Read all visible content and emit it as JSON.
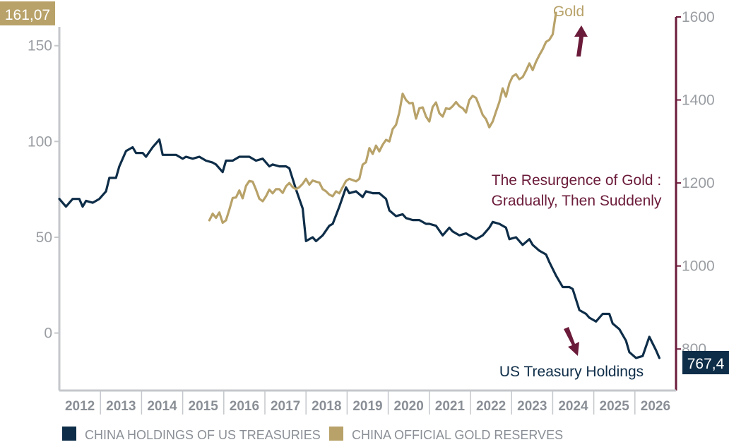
{
  "chart_data": {
    "type": "line",
    "title": "",
    "annotation_title": [
      "The Resurgence of Gold :",
      "Gradually, Then Suddenly"
    ],
    "x_axis": {
      "type": "date",
      "range": [
        "2011-07",
        "2026-12"
      ],
      "tick_labels": [
        "2012",
        "2013",
        "2014",
        "2015",
        "2016",
        "2017",
        "2018",
        "2019",
        "2020",
        "2021",
        "2022",
        "2023",
        "2024",
        "2025",
        "2026"
      ]
    },
    "y_left": {
      "range": [
        -30,
        165
      ],
      "ticks": [
        "0",
        "50",
        "100",
        "150"
      ]
    },
    "y_right": {
      "range": [
        700,
        1600
      ],
      "ticks": [
        "800",
        "1000",
        "1200",
        "1400",
        "1600"
      ]
    },
    "legend_position": "bottom",
    "grid": false,
    "series": [
      {
        "name": "CHINA HOLDINGS OF US TREASURIES",
        "axis": "left",
        "color": "#0e2d48",
        "end_label": "767,4",
        "series_label": "US Treasury Holdings",
        "points": [
          [
            "2011-07",
            70
          ],
          [
            "2011-09",
            66
          ],
          [
            "2011-11",
            70
          ],
          [
            "2012-01",
            70
          ],
          [
            "2012-02",
            66
          ],
          [
            "2012-03",
            69
          ],
          [
            "2012-05",
            68
          ],
          [
            "2012-07",
            70
          ],
          [
            "2012-09",
            74
          ],
          [
            "2012-10",
            81
          ],
          [
            "2012-12",
            81
          ],
          [
            "2013-01",
            87
          ],
          [
            "2013-03",
            95
          ],
          [
            "2013-05",
            97
          ],
          [
            "2013-06",
            94
          ],
          [
            "2013-08",
            94
          ],
          [
            "2013-09",
            92
          ],
          [
            "2013-11",
            97
          ],
          [
            "2014-01",
            101
          ],
          [
            "2014-02",
            93
          ],
          [
            "2014-04",
            93
          ],
          [
            "2014-06",
            93
          ],
          [
            "2014-08",
            91
          ],
          [
            "2014-09",
            92
          ],
          [
            "2014-11",
            91
          ],
          [
            "2015-01",
            92
          ],
          [
            "2015-03",
            90
          ],
          [
            "2015-05",
            89
          ],
          [
            "2015-06",
            88
          ],
          [
            "2015-08",
            84
          ],
          [
            "2015-09",
            90
          ],
          [
            "2015-11",
            90
          ],
          [
            "2016-01",
            92
          ],
          [
            "2016-03",
            92
          ],
          [
            "2016-04",
            92
          ],
          [
            "2016-06",
            90
          ],
          [
            "2016-08",
            91
          ],
          [
            "2016-10",
            87
          ],
          [
            "2016-11",
            88
          ],
          [
            "2017-01",
            87
          ],
          [
            "2017-03",
            87
          ],
          [
            "2017-04",
            86
          ],
          [
            "2017-06",
            75
          ],
          [
            "2017-08",
            65
          ],
          [
            "2017-09",
            48
          ],
          [
            "2017-11",
            50
          ],
          [
            "2017-12",
            48
          ],
          [
            "2018-02",
            51
          ],
          [
            "2018-04",
            56
          ],
          [
            "2018-05",
            57
          ],
          [
            "2018-07",
            66
          ],
          [
            "2018-09",
            76
          ],
          [
            "2018-10",
            73
          ],
          [
            "2018-12",
            74
          ],
          [
            "2019-02",
            71
          ],
          [
            "2019-03",
            74
          ],
          [
            "2019-05",
            73
          ],
          [
            "2019-07",
            73
          ],
          [
            "2019-09",
            70
          ],
          [
            "2019-10",
            64
          ],
          [
            "2019-12",
            61
          ],
          [
            "2020-02",
            62
          ],
          [
            "2020-03",
            60
          ],
          [
            "2020-05",
            59
          ],
          [
            "2020-07",
            59
          ],
          [
            "2020-09",
            57
          ],
          [
            "2020-10",
            57
          ],
          [
            "2020-12",
            56
          ],
          [
            "2021-02",
            51
          ],
          [
            "2021-04",
            55
          ],
          [
            "2021-05",
            53
          ],
          [
            "2021-07",
            51
          ],
          [
            "2021-09",
            52
          ],
          [
            "2021-10",
            51
          ],
          [
            "2021-12",
            49
          ],
          [
            "2022-02",
            51
          ],
          [
            "2022-04",
            55
          ],
          [
            "2022-05",
            58
          ],
          [
            "2022-07",
            57
          ],
          [
            "2022-09",
            55
          ],
          [
            "2022-10",
            49
          ],
          [
            "2022-12",
            50
          ],
          [
            "2023-02",
            46
          ],
          [
            "2023-04",
            49
          ],
          [
            "2023-05",
            46
          ],
          [
            "2023-07",
            43
          ],
          [
            "2023-09",
            41
          ],
          [
            "2023-10",
            37
          ],
          [
            "2023-12",
            30
          ],
          [
            "2024-02",
            24
          ],
          [
            "2024-04",
            24
          ],
          [
            "2024-05",
            23
          ],
          [
            "2024-07",
            12
          ],
          [
            "2024-09",
            10
          ],
          [
            "2024-10",
            8
          ],
          [
            "2024-12",
            6
          ],
          [
            "2025-02",
            10
          ],
          [
            "2025-04",
            10
          ],
          [
            "2025-05",
            5
          ],
          [
            "2025-07",
            2
          ],
          [
            "2025-09",
            -4
          ],
          [
            "2025-10",
            -10
          ],
          [
            "2025-12",
            -13
          ],
          [
            "2026-02",
            -12
          ],
          [
            "2026-04",
            -2
          ],
          [
            "2026-06",
            -9
          ],
          [
            "2026-07",
            -13
          ]
        ]
      },
      {
        "name": "CHINA OFFICIAL GOLD RESERVES",
        "axis": "right",
        "color": "#b8a269",
        "end_label": "161,07",
        "series_label": "Gold",
        "points": [
          [
            "2015-04",
            1110
          ],
          [
            "2015-05",
            1126
          ],
          [
            "2015-06",
            1116
          ],
          [
            "2015-07",
            1129
          ],
          [
            "2015-08",
            1104
          ],
          [
            "2015-09",
            1110
          ],
          [
            "2015-10",
            1136
          ],
          [
            "2015-11",
            1164
          ],
          [
            "2015-12",
            1165
          ],
          [
            "2016-01",
            1182
          ],
          [
            "2016-02",
            1163
          ],
          [
            "2016-03",
            1193
          ],
          [
            "2016-04",
            1205
          ],
          [
            "2016-05",
            1203
          ],
          [
            "2016-06",
            1184
          ],
          [
            "2016-07",
            1162
          ],
          [
            "2016-08",
            1156
          ],
          [
            "2016-09",
            1168
          ],
          [
            "2016-10",
            1184
          ],
          [
            "2016-11",
            1175
          ],
          [
            "2016-12",
            1185
          ],
          [
            "2017-01",
            1185
          ],
          [
            "2017-02",
            1176
          ],
          [
            "2017-03",
            1192
          ],
          [
            "2017-04",
            1200
          ],
          [
            "2017-05",
            1190
          ],
          [
            "2017-06",
            1185
          ],
          [
            "2017-07",
            1190
          ],
          [
            "2017-08",
            1198
          ],
          [
            "2017-09",
            1210
          ],
          [
            "2017-10",
            1196
          ],
          [
            "2017-11",
            1206
          ],
          [
            "2017-12",
            1203
          ],
          [
            "2018-01",
            1201
          ],
          [
            "2018-02",
            1185
          ],
          [
            "2018-03",
            1180
          ],
          [
            "2018-04",
            1172
          ],
          [
            "2018-05",
            1168
          ],
          [
            "2018-06",
            1180
          ],
          [
            "2018-07",
            1175
          ],
          [
            "2018-08",
            1190
          ],
          [
            "2018-09",
            1205
          ],
          [
            "2018-10",
            1210
          ],
          [
            "2018-11",
            1207
          ],
          [
            "2018-12",
            1204
          ],
          [
            "2019-01",
            1210
          ],
          [
            "2019-02",
            1244
          ],
          [
            "2019-03",
            1250
          ],
          [
            "2019-04",
            1284
          ],
          [
            "2019-05",
            1270
          ],
          [
            "2019-06",
            1290
          ],
          [
            "2019-07",
            1276
          ],
          [
            "2019-08",
            1292
          ],
          [
            "2019-09",
            1304
          ],
          [
            "2019-10",
            1300
          ],
          [
            "2019-11",
            1330
          ],
          [
            "2019-12",
            1340
          ],
          [
            "2020-01",
            1370
          ],
          [
            "2020-02",
            1415
          ],
          [
            "2020-03",
            1400
          ],
          [
            "2020-04",
            1392
          ],
          [
            "2020-05",
            1393
          ],
          [
            "2020-06",
            1355
          ],
          [
            "2020-07",
            1380
          ],
          [
            "2020-08",
            1382
          ],
          [
            "2020-09",
            1360
          ],
          [
            "2020-10",
            1348
          ],
          [
            "2020-11",
            1383
          ],
          [
            "2020-12",
            1394
          ],
          [
            "2021-01",
            1368
          ],
          [
            "2021-02",
            1360
          ],
          [
            "2021-03",
            1380
          ],
          [
            "2021-04",
            1378
          ],
          [
            "2021-05",
            1385
          ],
          [
            "2021-06",
            1395
          ],
          [
            "2021-07",
            1385
          ],
          [
            "2021-08",
            1380
          ],
          [
            "2021-09",
            1370
          ],
          [
            "2021-10",
            1400
          ],
          [
            "2021-11",
            1410
          ],
          [
            "2021-12",
            1405
          ],
          [
            "2022-01",
            1385
          ],
          [
            "2022-02",
            1364
          ],
          [
            "2022-03",
            1354
          ],
          [
            "2022-04",
            1334
          ],
          [
            "2022-05",
            1348
          ],
          [
            "2022-06",
            1372
          ],
          [
            "2022-07",
            1395
          ],
          [
            "2022-08",
            1428
          ],
          [
            "2022-09",
            1408
          ],
          [
            "2022-10",
            1440
          ],
          [
            "2022-11",
            1457
          ],
          [
            "2022-12",
            1462
          ],
          [
            "2023-01",
            1450
          ],
          [
            "2023-02",
            1455
          ],
          [
            "2023-03",
            1470
          ],
          [
            "2023-04",
            1488
          ],
          [
            "2023-05",
            1472
          ],
          [
            "2023-06",
            1492
          ],
          [
            "2023-07",
            1508
          ],
          [
            "2023-08",
            1522
          ],
          [
            "2023-09",
            1540
          ],
          [
            "2023-10",
            1545
          ],
          [
            "2023-11",
            1558
          ],
          [
            "2023-12",
            1610
          ]
        ]
      }
    ],
    "arrows": [
      {
        "series": "CHINA OFFICIAL GOLD RESERVES",
        "direction": "up",
        "color": "#6b1b3a"
      },
      {
        "series": "CHINA HOLDINGS OF US TREASURIES",
        "direction": "down",
        "color": "#6b1b3a"
      }
    ]
  }
}
